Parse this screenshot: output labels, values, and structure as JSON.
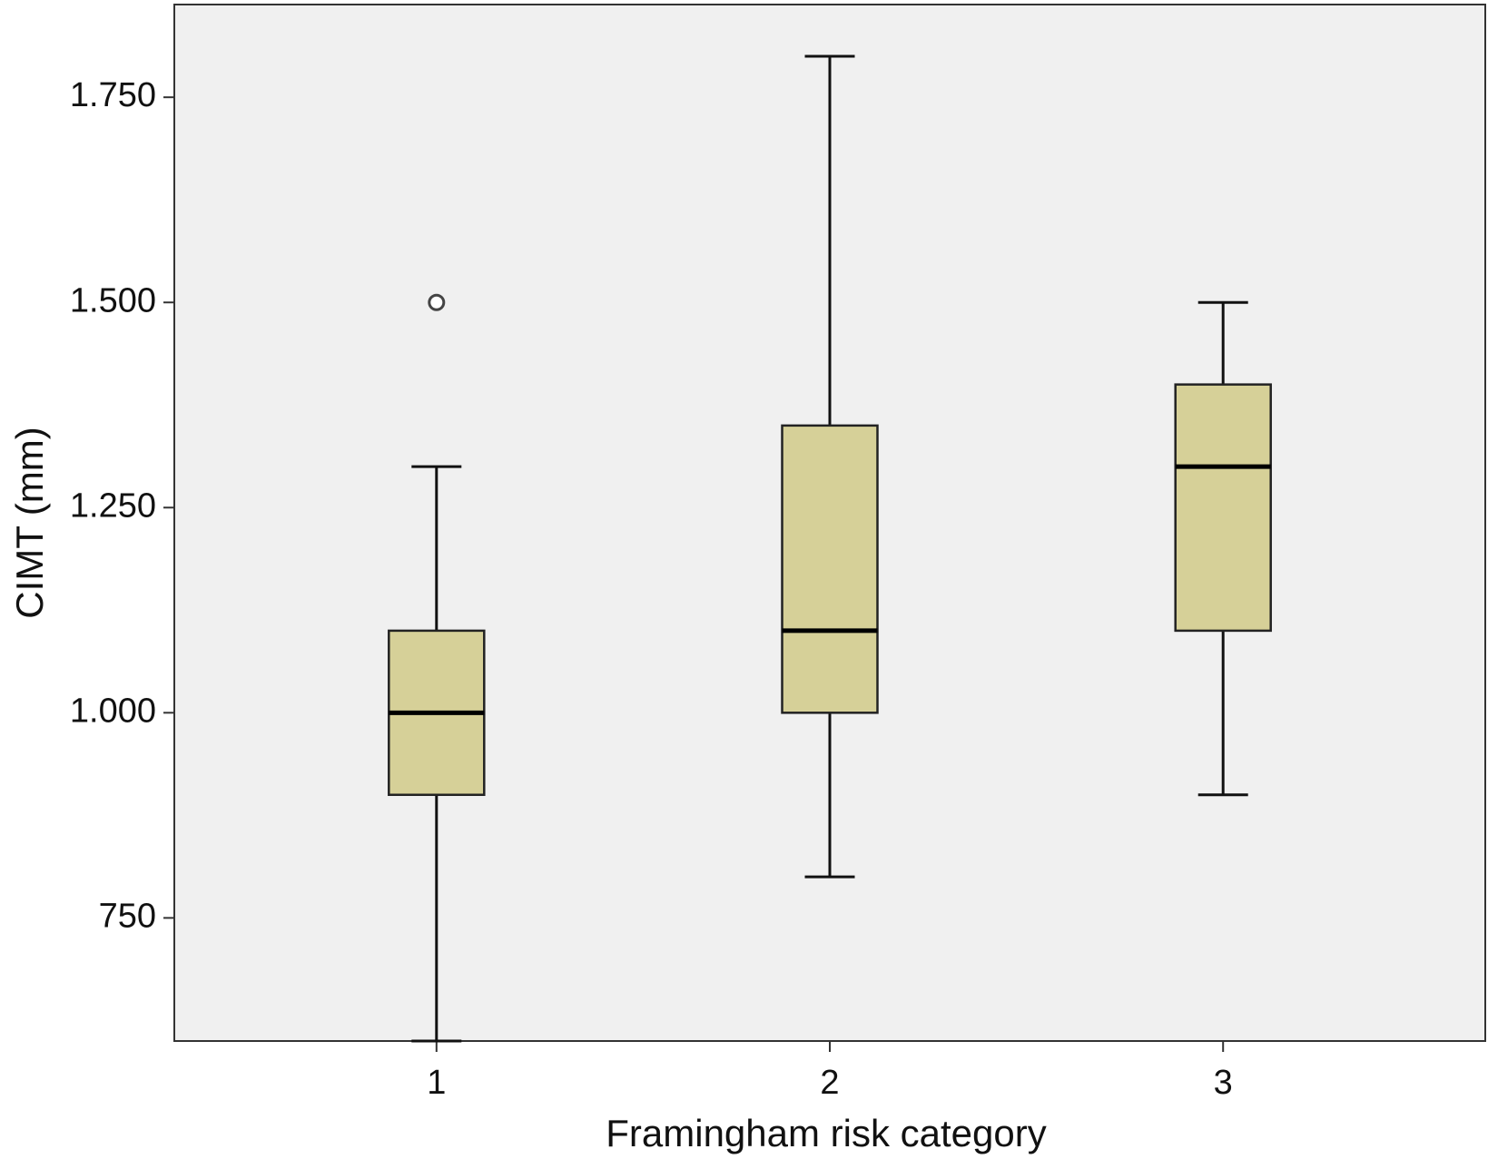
{
  "chart_data": {
    "type": "box",
    "x_label": "Framingham risk category",
    "y_label": "CIMT (mm)",
    "categories": [
      "1",
      "2",
      "3"
    ],
    "min": [
      600,
      800,
      900
    ],
    "q1": [
      900,
      1000,
      1100
    ],
    "median": [
      1000,
      1100,
      1300
    ],
    "q3": [
      1100,
      1350,
      1400
    ],
    "max": [
      1300,
      1800,
      1500
    ],
    "outliers": [
      [
        1500
      ],
      [],
      []
    ],
    "color": "#d6d098",
    "background": "#f0f0f0",
    "ylim": [
      600,
      1863
    ],
    "yticks": [
      750,
      {
        "value": 1000,
        "label": "1.000"
      },
      {
        "value": 1250,
        "label": "1.250"
      },
      {
        "value": 1500,
        "label": "1.500"
      },
      {
        "value": 1750,
        "label": "1.750"
      }
    ]
  }
}
